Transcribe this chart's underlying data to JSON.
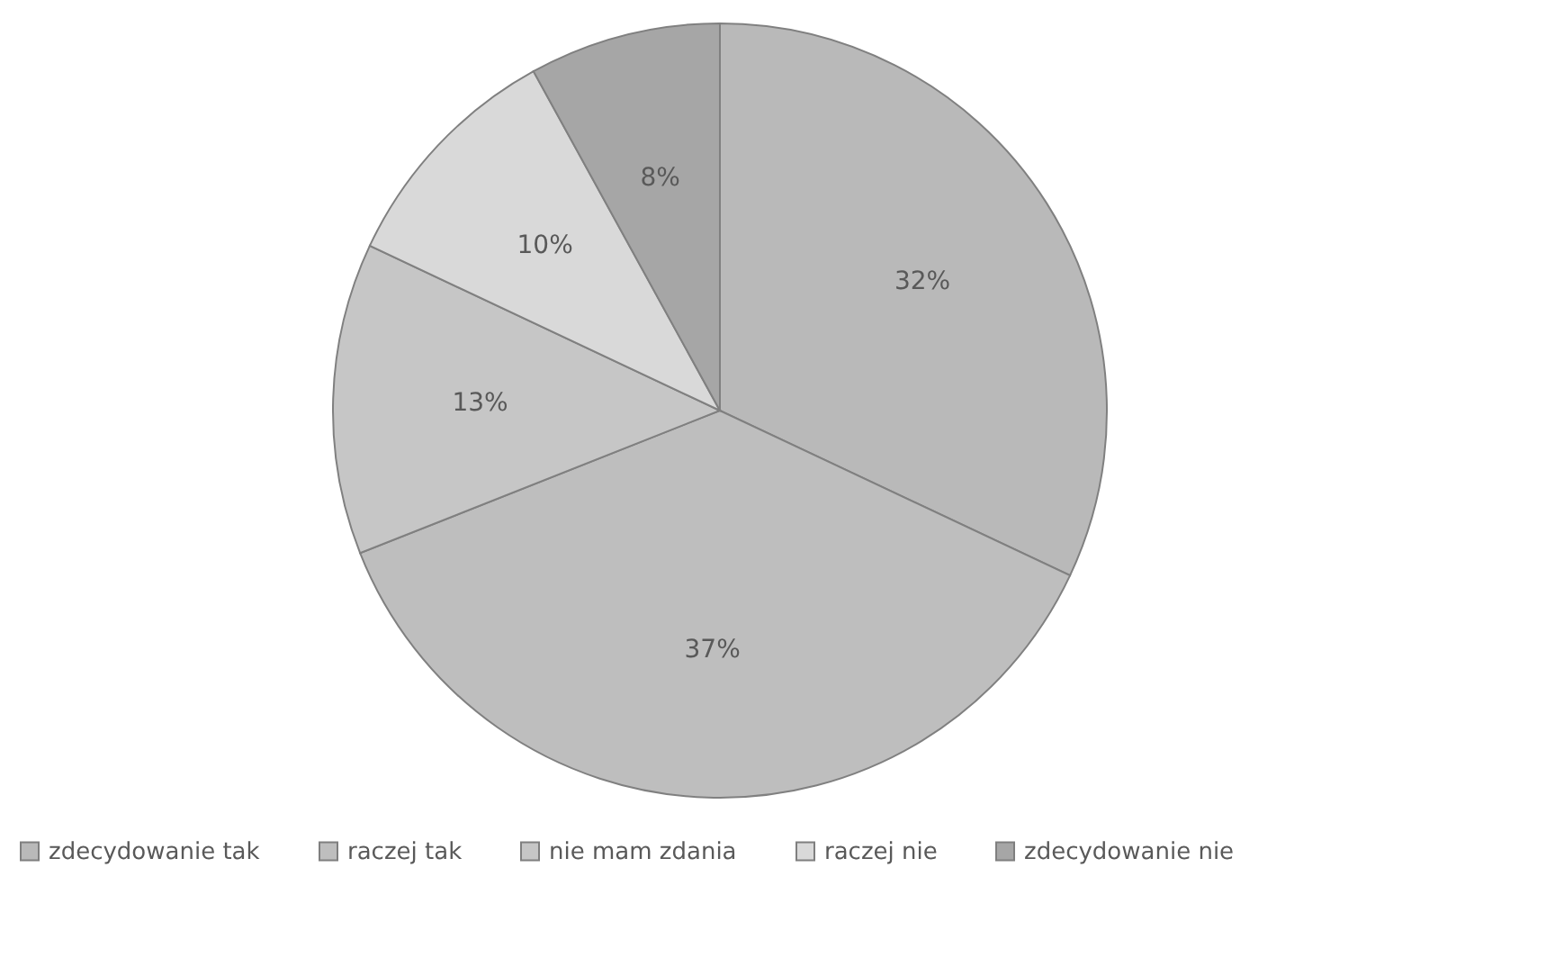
{
  "chart_data": {
    "type": "pie",
    "categories": [
      "zdecydowanie tak",
      "raczej tak",
      "nie mam zdania",
      "raczej nie",
      "zdecydowanie nie"
    ],
    "values": [
      32,
      37,
      13,
      10,
      8
    ],
    "colors": [
      "#b9b9b9",
      "#bebebe",
      "#c6c6c6",
      "#d9d9d9",
      "#a6a6a6"
    ],
    "value_labels": [
      "32%",
      "37%",
      "13%",
      "10%",
      "8%"
    ],
    "legend": "bottom"
  }
}
